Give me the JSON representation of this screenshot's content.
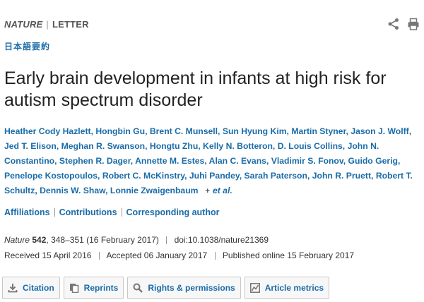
{
  "header": {
    "journal": "NATURE",
    "separator": "|",
    "article_type": "LETTER",
    "japanese_summary_link": "日本語要約"
  },
  "article": {
    "title": "Early brain development in infants at high risk for autism spectrum disorder",
    "authors": [
      "Heather Cody Hazlett",
      "Hongbin Gu",
      "Brent C. Munsell",
      "Sun Hyung Kim",
      "Martin Styner",
      "Jason J. Wolff",
      "Jed T. Elison",
      "Meghan R. Swanson",
      "Hongtu Zhu",
      "Kelly N. Botteron",
      "D. Louis Collins",
      "John N. Constantino",
      "Stephen R. Dager",
      "Annette M. Estes",
      "Alan C. Evans",
      "Vladimir S. Fonov",
      "Guido Gerig",
      "Penelope Kostopoulos",
      "Robert C. McKinstry",
      "Juhi Pandey",
      "Sarah Paterson",
      "John R. Pruett",
      "Robert T. Schultz",
      "Dennis W. Shaw",
      "Lonnie Zwaigenbaum"
    ],
    "expand_symbol": "+",
    "et_al": "et al."
  },
  "info_links": {
    "affiliations": "Affiliations",
    "contributions": "Contributions",
    "corresponding": "Corresponding author"
  },
  "citation": {
    "journal": "Nature",
    "volume": "542",
    "pages": "348–351",
    "date": "(16 February 2017)",
    "doi": "doi:10.1038/nature21369"
  },
  "dates": {
    "received": "Received  15 April 2016",
    "accepted": "Accepted  06 January 2017",
    "published": "Published online  15 February 2017"
  },
  "buttons": {
    "citation": "Citation",
    "reprints": "Reprints",
    "rights": "Rights & permissions",
    "metrics": "Article metrics"
  },
  "icons": {
    "share": "share-icon",
    "print": "print-icon",
    "download": "download-icon",
    "reprints": "pages-icon",
    "rights": "search-icon",
    "metrics": "chart-icon"
  },
  "colors": {
    "link": "#1a6ca8",
    "text": "#222222",
    "muted": "#555555"
  }
}
